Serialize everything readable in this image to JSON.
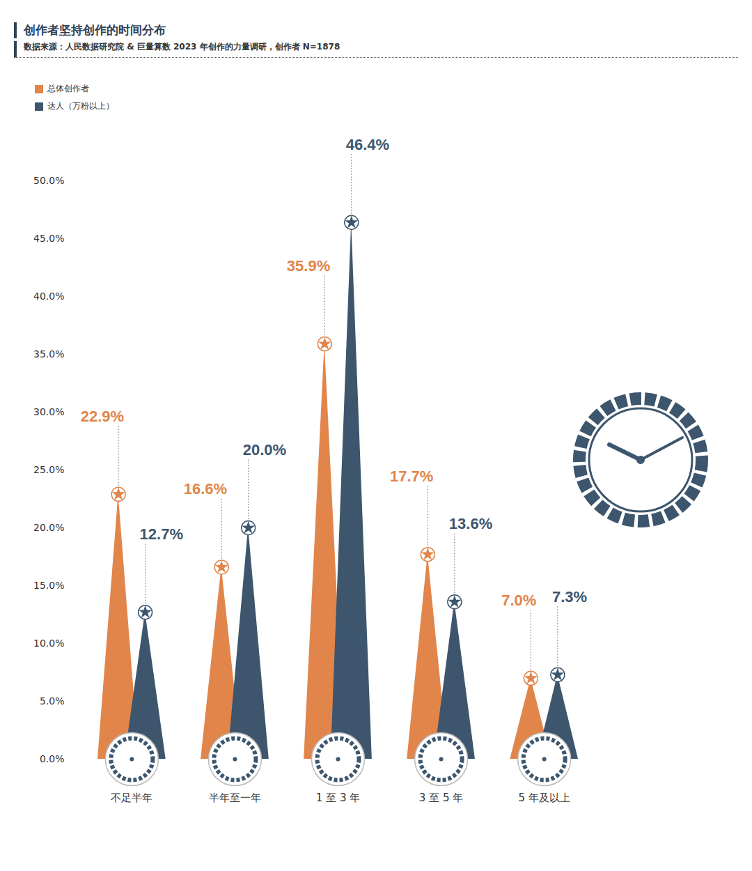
{
  "chart_data": {
    "type": "bar",
    "title": "创作者坚持创作的时间分布",
    "subtitle": "数据来源：人民数据研究院 & 巨量算数 2023 年创作的力量调研，创作者 N=1878",
    "categories": [
      "不足半年",
      "半年至一年",
      "1 至 3 年",
      "3 至 5 年",
      "5 年及以上"
    ],
    "series": [
      {
        "name": "总体创作者",
        "color": "#e2854a",
        "values": [
          22.9,
          16.6,
          35.9,
          17.7,
          7.0
        ],
        "value_labels": [
          "22.9%",
          "16.6%",
          "35.9%",
          "17.7%",
          "7.0%"
        ]
      },
      {
        "name": "达人（万粉以上）",
        "color": "#3d566e",
        "values": [
          12.7,
          20.0,
          46.4,
          13.6,
          7.3
        ],
        "value_labels": [
          "12.7%",
          "20.0%",
          "46.4%",
          "13.6%",
          "7.3%"
        ]
      }
    ],
    "ylim": [
      0,
      50
    ],
    "yticks": [
      {
        "value": 0,
        "label": "0.0%"
      },
      {
        "value": 5,
        "label": "5.0%"
      },
      {
        "value": 10,
        "label": "10.0%"
      },
      {
        "value": 15,
        "label": "15.0%"
      },
      {
        "value": 20,
        "label": "20.0%"
      },
      {
        "value": 25,
        "label": "25.0%"
      },
      {
        "value": 30,
        "label": "30.0%"
      },
      {
        "value": 35,
        "label": "35.0%"
      },
      {
        "value": 40,
        "label": "40.0%"
      },
      {
        "value": 45,
        "label": "45.0%"
      },
      {
        "value": 50,
        "label": "50.0%"
      }
    ],
    "grid": false,
    "legend": "top-left",
    "data_labels": true
  }
}
